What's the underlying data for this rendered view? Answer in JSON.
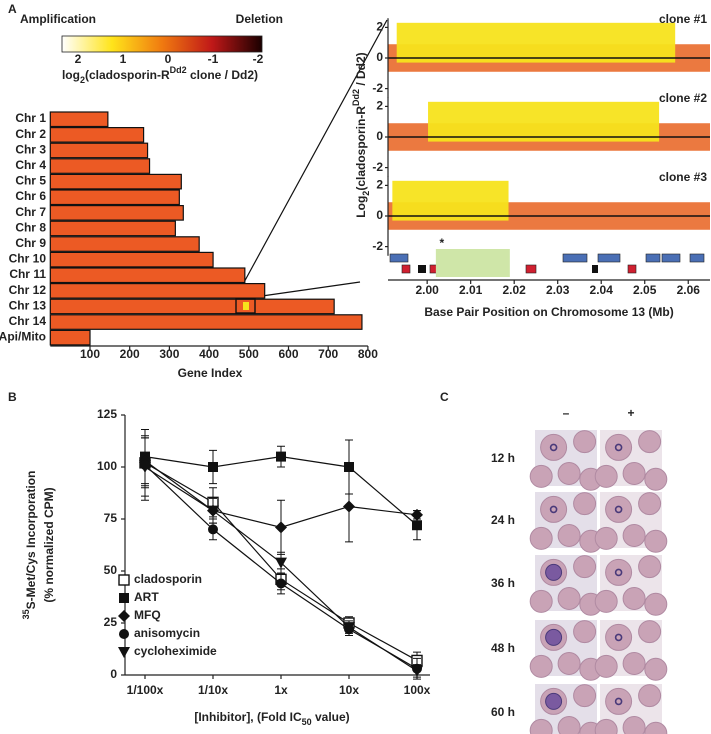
{
  "panel_labels": [
    "A",
    "B",
    "C"
  ],
  "chart_data": [
    {
      "type": "bar",
      "orientation": "horizontal",
      "categories": [
        "Chr 1",
        "Chr 2",
        "Chr 3",
        "Chr 4",
        "Chr 5",
        "Chr 6",
        "Chr 7",
        "Chr 8",
        "Chr 9",
        "Chr 10",
        "Chr 11",
        "Chr 12",
        "Chr 13",
        "Chr 14",
        "Api/Mito"
      ],
      "values": [
        145,
        235,
        245,
        250,
        330,
        325,
        335,
        315,
        375,
        410,
        490,
        540,
        715,
        785,
        100
      ],
      "color": "#ec5a24",
      "xlim": [
        0,
        800
      ],
      "xticks": [
        100,
        200,
        300,
        400,
        500,
        600,
        700,
        800
      ],
      "xlabel": "Gene Index",
      "colorbar": {
        "left": "Amplification",
        "right": "Deletion",
        "ticks": [
          2,
          1,
          0,
          -1,
          -2
        ],
        "colors": [
          "#ffffff",
          "#ffe41a",
          "#f07a10",
          "#c01818",
          "#1a0000"
        ],
        "label": [
          {
            "text": "log"
          },
          {
            "text": "2",
            "shift": "sub"
          },
          {
            "text": "(cladosporin-R"
          },
          {
            "text": "Dd2",
            "shift": "super"
          },
          {
            "text": " clone / Dd2)"
          }
        ]
      }
    },
    {
      "type": "scatter",
      "panels": [
        {
          "name": "clone #1",
          "amplified": [
            1.993,
            2.057
          ],
          "amplified_level": 1,
          "baseline_level": 0
        },
        {
          "name": "clone #2",
          "amplified": [
            2.0002,
            2.0533
          ],
          "amplified_level": 1,
          "baseline_level": 0
        },
        {
          "name": "clone #3",
          "amplified": [
            1.992,
            2.0187
          ],
          "amplified_level": 1,
          "baseline_level": 0
        }
      ],
      "colors": {
        "amplified": "#f7e31c",
        "baseline": "#e8621e"
      },
      "xlim": [
        1.991,
        2.065
      ],
      "xticks": [
        {
          "value": 2,
          "label": "2.00"
        },
        {
          "value": 2.01,
          "label": "2.01"
        },
        {
          "value": 2.02,
          "label": "2.02"
        },
        {
          "value": 2.03,
          "label": "2.03"
        },
        {
          "value": 2.04,
          "label": "2.04"
        },
        {
          "value": 2.05,
          "label": "2.05"
        },
        {
          "value": 2.06,
          "label": "2.06"
        }
      ],
      "ylim": [
        -2.6,
        2.6
      ],
      "yticks": [
        -2,
        0,
        2
      ],
      "xlabel": "Base Pair Position on Chromosome 13 (Mb)",
      "ylabel": [
        {
          "text": "Log"
        },
        {
          "text": "2",
          "shift": "sub"
        },
        {
          "text": "(cladosporin-R"
        },
        {
          "text": "Dd2",
          "shift": "super"
        },
        {
          "text": " / Dd2)"
        }
      ],
      "highlight": [
        2.002,
        2.019
      ],
      "highlight_label": "*"
    },
    {
      "type": "line",
      "categories": [
        "1/100x",
        "1/10x",
        "1x",
        "10x",
        "100x"
      ],
      "ylim": [
        0,
        125
      ],
      "yticks": [
        0,
        25,
        50,
        75,
        100,
        125
      ],
      "ylabel": [
        [
          {
            "text": "35",
            "shift": "super"
          },
          {
            "text": "S-Met/Cys Incorporation"
          }
        ],
        [
          {
            "text": "(% normalized CPM)"
          }
        ]
      ],
      "xlabel": [
        {
          "text": "[Inhibitor], (Fold IC"
        },
        {
          "text": "50",
          "shift": "sub"
        },
        {
          "text": " value)"
        }
      ],
      "series": [
        {
          "name": "cladosporin",
          "marker": "open-square",
          "color": "#111111",
          "values": [
            102,
            83,
            46,
            25,
            7
          ],
          "errors": [
            12,
            7,
            5,
            3,
            4
          ]
        },
        {
          "name": "ART",
          "marker": "square",
          "color": "#111111",
          "values": [
            105,
            100,
            105,
            100,
            72
          ],
          "errors": [
            13,
            8,
            5,
            13,
            7
          ]
        },
        {
          "name": "MFQ",
          "marker": "diamond",
          "color": "#111111",
          "values": [
            103,
            79,
            71,
            81,
            77
          ],
          "errors": [
            12,
            6,
            13,
            17,
            2
          ]
        },
        {
          "name": "anisomycin",
          "marker": "circle",
          "color": "#111111",
          "values": [
            101,
            70,
            44,
            22,
            3
          ],
          "errors": [
            17,
            5,
            5,
            3,
            5
          ]
        },
        {
          "name": "cycloheximide",
          "marker": "triangle-down",
          "color": "#111111",
          "values": [
            100,
            79,
            54,
            23,
            2
          ],
          "errors": [
            14,
            6,
            5,
            3,
            3
          ]
        }
      ]
    }
  ],
  "panel_c": {
    "columns": [
      "–",
      "+"
    ],
    "rows": [
      "12 h",
      "24 h",
      "36 h",
      "48 h",
      "60 h"
    ]
  }
}
